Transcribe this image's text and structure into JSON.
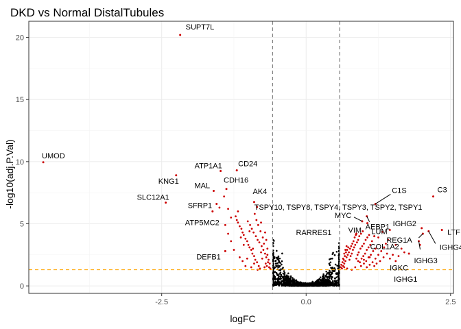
{
  "chart_data": {
    "type": "scatter",
    "title": "DKD vs Normal DistalTubules",
    "xlabel": "logFC",
    "ylabel": "-log10(adj.P.Val)",
    "xlim": [
      -4.8,
      2.55
    ],
    "ylim": [
      -0.6,
      21.3
    ],
    "x_ticks": [
      -2.5,
      0.0,
      2.5
    ],
    "x_tick_labels": [
      "-2.5",
      "0.0",
      "2.5"
    ],
    "y_ticks": [
      0,
      5,
      10,
      15,
      20
    ],
    "y_tick_labels": [
      "0",
      "5",
      "10",
      "15",
      "20"
    ],
    "grid": true,
    "thresholds": {
      "logFC": [
        -0.58,
        0.58
      ],
      "significance_line": 1.3,
      "vline_color": "#808080",
      "hline_color": "#FFA500"
    },
    "colors": {
      "significant": "#CC0000",
      "not_significant": "#000000",
      "panel_border": "#333333",
      "grid_major": "#EBEBEB"
    },
    "labeled_genes": [
      {
        "gene": "SUPT7L",
        "x": -2.18,
        "y": 20.2
      },
      {
        "gene": "UMOD",
        "x": -4.55,
        "y": 9.95
      },
      {
        "gene": "KNG1",
        "x": -2.25,
        "y": 8.9
      },
      {
        "gene": "SLC12A1",
        "x": -2.43,
        "y": 6.7
      },
      {
        "gene": "ATP1A1",
        "x": -1.48,
        "y": 9.25
      },
      {
        "gene": "CD24",
        "x": -1.2,
        "y": 9.3
      },
      {
        "gene": "CDH16",
        "x": -1.38,
        "y": 7.8
      },
      {
        "gene": "MAL",
        "x": -1.6,
        "y": 7.65
      },
      {
        "gene": "SFRP1",
        "x": -1.55,
        "y": 6.6
      },
      {
        "gene": "ATP5MC2",
        "x": -1.62,
        "y": 6.0
      },
      {
        "gene": "AK4",
        "x": -0.9,
        "y": 6.75
      },
      {
        "gene": "TSPY10, TSPY8, TSPY4, TSPY3, TSPY2, TSPY1",
        "x": -0.85,
        "y": 6.35
      },
      {
        "gene": "DEFB1",
        "x": -1.4,
        "y": 2.8
      },
      {
        "gene": "C1S",
        "x": 1.2,
        "y": 6.6
      },
      {
        "gene": "C3",
        "x": 2.2,
        "y": 7.2
      },
      {
        "gene": "AEBP1",
        "x": 1.05,
        "y": 5.6
      },
      {
        "gene": "MYC",
        "x": 0.97,
        "y": 5.2
      },
      {
        "gene": "VIM",
        "x": 1.06,
        "y": 5.05
      },
      {
        "gene": "LUM",
        "x": 1.32,
        "y": 4.35
      },
      {
        "gene": "RARRES1",
        "x": 0.87,
        "y": 4.2
      },
      {
        "gene": "COL1A2",
        "x": 1.18,
        "y": 4.0
      },
      {
        "gene": "IGHG2",
        "x": 2.0,
        "y": 4.65
      },
      {
        "gene": "LTF",
        "x": 2.35,
        "y": 4.5
      },
      {
        "gene": "IGHG4",
        "x": 2.12,
        "y": 4.4
      },
      {
        "gene": "REG1A",
        "x": 2.02,
        "y": 4.2
      },
      {
        "gene": "IGHG3",
        "x": 1.95,
        "y": 3.6
      },
      {
        "gene": "IGKC",
        "x": 1.97,
        "y": 3.3
      },
      {
        "gene": "IGHG1",
        "x": 1.78,
        "y": 2.6
      }
    ],
    "significant_points": [
      [
        -0.8,
        1.4
      ],
      [
        -0.82,
        1.6
      ],
      [
        -0.85,
        1.9
      ],
      [
        -0.88,
        2.1
      ],
      [
        -0.9,
        2.4
      ],
      [
        -0.93,
        2.6
      ],
      [
        -0.95,
        2.9
      ],
      [
        -0.98,
        3.1
      ],
      [
        -1.0,
        3.3
      ],
      [
        -1.02,
        3.6
      ],
      [
        -1.05,
        3.8
      ],
      [
        -1.08,
        4.1
      ],
      [
        -1.1,
        4.3
      ],
      [
        -1.12,
        4.6
      ],
      [
        -1.15,
        4.8
      ],
      [
        -1.18,
        5.1
      ],
      [
        -1.2,
        5.3
      ],
      [
        -1.22,
        5.6
      ],
      [
        -0.76,
        2.2
      ],
      [
        -0.78,
        2.7
      ],
      [
        -0.72,
        1.5
      ],
      [
        -0.7,
        1.8
      ],
      [
        -0.74,
        2.9
      ],
      [
        -0.77,
        3.2
      ],
      [
        -0.81,
        3.5
      ],
      [
        -0.84,
        3.7
      ],
      [
        -0.87,
        4.0
      ],
      [
        -0.91,
        4.3
      ],
      [
        -0.94,
        4.6
      ],
      [
        -0.97,
        4.9
      ],
      [
        -1.01,
        5.2
      ],
      [
        -0.75,
        3.9
      ],
      [
        -0.79,
        4.4
      ],
      [
        -0.83,
        4.9
      ],
      [
        -0.86,
        5.3
      ],
      [
        -0.89,
        5.8
      ],
      [
        -0.68,
        1.6
      ],
      [
        -0.66,
        1.9
      ],
      [
        -0.69,
        2.3
      ],
      [
        -0.71,
        2.6
      ],
      [
        -0.73,
        3.4
      ],
      [
        -0.64,
        1.5
      ],
      [
        -0.63,
        1.8
      ],
      [
        -0.65,
        2.1
      ],
      [
        -0.67,
        2.5
      ],
      [
        -1.25,
        2.9
      ],
      [
        -1.3,
        3.6
      ],
      [
        -1.35,
        4.2
      ],
      [
        -1.4,
        4.9
      ],
      [
        -1.3,
        5.5
      ],
      [
        -1.05,
        1.6
      ],
      [
        -1.1,
        2.0
      ],
      [
        -1.15,
        2.3
      ],
      [
        -0.95,
        1.5
      ],
      [
        -0.9,
        1.8
      ],
      [
        -1.02,
        2.2
      ],
      [
        -0.92,
        3.0
      ],
      [
        -1.08,
        3.3
      ],
      [
        -1.13,
        3.9
      ],
      [
        -0.98,
        4.4
      ],
      [
        -0.84,
        1.3
      ],
      [
        -0.78,
        5.1
      ],
      [
        -0.71,
        4.3
      ],
      [
        -0.69,
        3.7
      ],
      [
        -0.67,
        3.0
      ],
      [
        -1.5,
        6.3
      ],
      [
        -1.35,
        6.2
      ],
      [
        -1.42,
        7.2
      ],
      [
        -1.18,
        6.0
      ],
      [
        -0.62,
        1.4
      ],
      [
        0.62,
        1.4
      ],
      [
        0.64,
        1.6
      ],
      [
        0.66,
        1.8
      ],
      [
        0.68,
        2.0
      ],
      [
        0.7,
        2.3
      ],
      [
        0.72,
        2.5
      ],
      [
        0.74,
        2.7
      ],
      [
        0.76,
        3.0
      ],
      [
        0.78,
        3.2
      ],
      [
        0.8,
        3.4
      ],
      [
        0.82,
        3.6
      ],
      [
        0.84,
        3.9
      ],
      [
        0.86,
        4.1
      ],
      [
        0.65,
        2.1
      ],
      [
        0.67,
        2.4
      ],
      [
        0.69,
        2.7
      ],
      [
        0.71,
        2.9
      ],
      [
        0.73,
        3.1
      ],
      [
        0.63,
        1.9
      ],
      [
        0.75,
        2.1
      ],
      [
        0.77,
        2.4
      ],
      [
        0.79,
        2.6
      ],
      [
        0.81,
        2.9
      ],
      [
        0.83,
        3.1
      ],
      [
        0.85,
        3.3
      ],
      [
        0.88,
        3.5
      ],
      [
        0.9,
        3.7
      ],
      [
        0.92,
        4.0
      ],
      [
        0.95,
        4.2
      ],
      [
        0.98,
        4.4
      ],
      [
        0.87,
        2.2
      ],
      [
        0.89,
        2.5
      ],
      [
        0.91,
        2.7
      ],
      [
        0.94,
        3.0
      ],
      [
        0.97,
        3.2
      ],
      [
        1.0,
        3.4
      ],
      [
        1.03,
        3.7
      ],
      [
        1.06,
        3.9
      ],
      [
        1.09,
        4.1
      ],
      [
        0.93,
        1.9
      ],
      [
        0.96,
        2.2
      ],
      [
        0.99,
        2.4
      ],
      [
        1.02,
        2.6
      ],
      [
        1.05,
        2.9
      ],
      [
        1.08,
        3.1
      ],
      [
        1.11,
        3.3
      ],
      [
        1.14,
        3.6
      ],
      [
        1.0,
        1.8
      ],
      [
        1.04,
        2.0
      ],
      [
        1.08,
        2.3
      ],
      [
        1.12,
        2.5
      ],
      [
        1.16,
        2.8
      ],
      [
        1.2,
        3.0
      ],
      [
        1.1,
        1.7
      ],
      [
        1.15,
        1.9
      ],
      [
        1.2,
        2.2
      ],
      [
        1.25,
        2.5
      ],
      [
        1.3,
        2.8
      ],
      [
        1.35,
        3.1
      ],
      [
        1.22,
        1.8
      ],
      [
        1.28,
        2.0
      ],
      [
        1.34,
        2.3
      ],
      [
        1.4,
        2.6
      ],
      [
        0.6,
        1.5
      ],
      [
        0.61,
        1.7
      ],
      [
        0.64,
        2.2
      ],
      [
        0.66,
        2.6
      ],
      [
        0.68,
        2.9
      ],
      [
        0.7,
        3.2
      ],
      [
        1.45,
        2.2
      ],
      [
        1.5,
        2.5
      ],
      [
        1.55,
        2.0
      ],
      [
        1.6,
        2.4
      ],
      [
        1.38,
        3.4
      ],
      [
        1.42,
        3.7
      ],
      [
        1.25,
        3.9
      ],
      [
        1.45,
        4.5
      ],
      [
        1.55,
        3.3
      ],
      [
        1.65,
        3.0
      ],
      [
        1.7,
        2.7
      ],
      [
        0.79,
        1.3
      ],
      [
        0.85,
        1.5
      ],
      [
        0.95,
        1.6
      ],
      [
        1.05,
        1.5
      ],
      [
        1.18,
        1.6
      ],
      [
        0.71,
        1.4
      ],
      [
        0.66,
        1.5
      ],
      [
        0.9,
        2.0
      ],
      [
        1.0,
        2.1
      ],
      [
        1.1,
        2.3
      ]
    ],
    "nonsignificant_points_note_free": true
  }
}
